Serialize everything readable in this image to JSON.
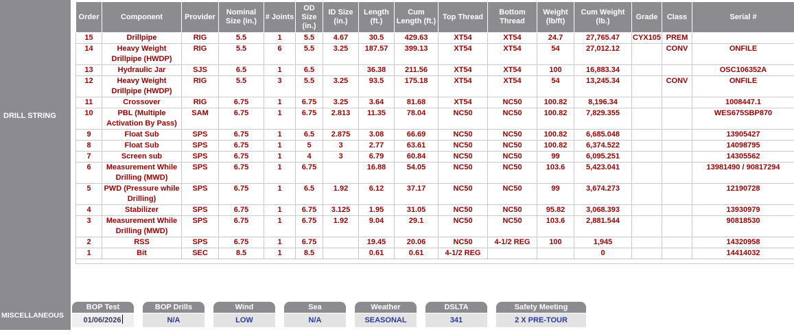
{
  "sidebar": {
    "drill_string_label": "DRILL STRING",
    "miscellaneous_label": "MISCELLANEOUS"
  },
  "colors": {
    "header_gray": "#8b8b90",
    "data_text": "#990000",
    "misc_value_blue": "#2b3a9d",
    "misc_value_bg": "#e3e3e3"
  },
  "drill_string": {
    "columns": [
      "Order",
      "Component",
      "Provider",
      "Nominal Size (in.)",
      "# Joints",
      "OD Size (in.)",
      "ID Size (in.)",
      "Length (ft.)",
      "Cum Length (ft.)",
      "Top Thread",
      "Bottom Thread",
      "Weight (lb/ft)",
      "Cum Weight (lb.)",
      "Grade",
      "Class",
      "Serial #"
    ],
    "rows": [
      [
        "15",
        "Drillpipe",
        "RIG",
        "5.5",
        "1",
        "5.5",
        "4.67",
        "30.5",
        "429.63",
        "XT54",
        "XT54",
        "24.7",
        "27,765.47",
        "CYX105",
        "PREM",
        ""
      ],
      [
        "14",
        "Heavy Weight Drillpipe (HWDP)",
        "RIG",
        "5.5",
        "6",
        "5.5",
        "3.25",
        "187.57",
        "399.13",
        "XT54",
        "XT54",
        "54",
        "27,012.12",
        "",
        "CONV",
        "ONFILE"
      ],
      [
        "13",
        "Hydraulic Jar",
        "SJS",
        "6.5",
        "1",
        "6.5",
        "",
        "36.38",
        "211.56",
        "XT54",
        "XT54",
        "100",
        "16,883.34",
        "",
        "",
        "OSC106352A"
      ],
      [
        "12",
        "Heavy Weight Drillpipe (HWDP)",
        "RIG",
        "5.5",
        "3",
        "5.5",
        "3.25",
        "93.5",
        "175.18",
        "XT54",
        "XT54",
        "54",
        "13,245.34",
        "",
        "CONV",
        "ONFILE"
      ],
      [
        "11",
        "Crossover",
        "RIG",
        "6.75",
        "1",
        "6.75",
        "3.25",
        "3.64",
        "81.68",
        "XT54",
        "NC50",
        "100.82",
        "8,196.34",
        "",
        "",
        "1008447.1"
      ],
      [
        "10",
        "PBL (Multiple Activation By Pass)",
        "SAM",
        "6.75",
        "1",
        "6.75",
        "2.813",
        "11.35",
        "78.04",
        "NC50",
        "NC50",
        "100.82",
        "7,829.355",
        "",
        "",
        "WES675SBP870"
      ],
      [
        "9",
        "Float Sub",
        "SPS",
        "6.75",
        "1",
        "6.5",
        "2.875",
        "3.08",
        "66.69",
        "NC50",
        "NC50",
        "100.82",
        "6,685.048",
        "",
        "",
        "13905427"
      ],
      [
        "8",
        "Float Sub",
        "SPS",
        "6.75",
        "1",
        "5",
        "3",
        "2.77",
        "63.61",
        "NC50",
        "NC50",
        "100.82",
        "6,374.522",
        "",
        "",
        "14098795"
      ],
      [
        "7",
        "Screen sub",
        "SPS",
        "6.75",
        "1",
        "4",
        "3",
        "6.79",
        "60.84",
        "NC50",
        "NC50",
        "99",
        "6,095.251",
        "",
        "",
        "14305562"
      ],
      [
        "6",
        "Measurement While Drilling (MWD)",
        "SPS",
        "6.75",
        "1",
        "6.75",
        "",
        "16.88",
        "54.05",
        "NC50",
        "NC50",
        "103.6",
        "5,423.041",
        "",
        "",
        "13981490 / 90817294"
      ],
      [
        "5",
        "PWD (Pressure while Drilling)",
        "SPS",
        "6.75",
        "1",
        "6.5",
        "1.92",
        "6.12",
        "37.17",
        "NC50",
        "NC50",
        "99",
        "3,674.273",
        "",
        "",
        "12190728"
      ],
      [
        "4",
        "Stabilizer",
        "SPS",
        "6.75",
        "1",
        "6.75",
        "3.125",
        "1.95",
        "31.05",
        "NC50",
        "NC50",
        "95.82",
        "3,068.393",
        "",
        "",
        "13930979"
      ],
      [
        "3",
        "Measurement While Drilling (MWD)",
        "SPS",
        "6.75",
        "1",
        "6.75",
        "1.92",
        "9.04",
        "29.1",
        "NC50",
        "NC50",
        "103.6",
        "2,881.544",
        "",
        "",
        "90818530"
      ],
      [
        "2",
        "RSS",
        "SPS",
        "6.75",
        "1",
        "6.75",
        "",
        "19.45",
        "20.06",
        "NC50",
        "4-1/2 REG",
        "100",
        "1,945",
        "",
        "",
        "14320958"
      ],
      [
        "1",
        "Bit",
        "SEC",
        "8.5",
        "1",
        "8.5",
        "",
        "0.61",
        "0.61",
        "4-1/2 REG",
        "",
        "",
        "0",
        "",
        "",
        "14414032"
      ]
    ]
  },
  "miscellaneous": {
    "fields": [
      {
        "label": "BOP Test",
        "value": "01/06/2026",
        "focused": true
      },
      {
        "label": "BOP Drills",
        "value": "N/A"
      },
      {
        "label": "Wind",
        "value": "LOW"
      },
      {
        "label": "Sea",
        "value": "N/A"
      },
      {
        "label": "Weather",
        "value": "SEASONAL"
      },
      {
        "label": "DSLTA",
        "value": "341"
      },
      {
        "label": "Safety Meeting",
        "value": "2 X PRE-TOUR"
      }
    ]
  }
}
